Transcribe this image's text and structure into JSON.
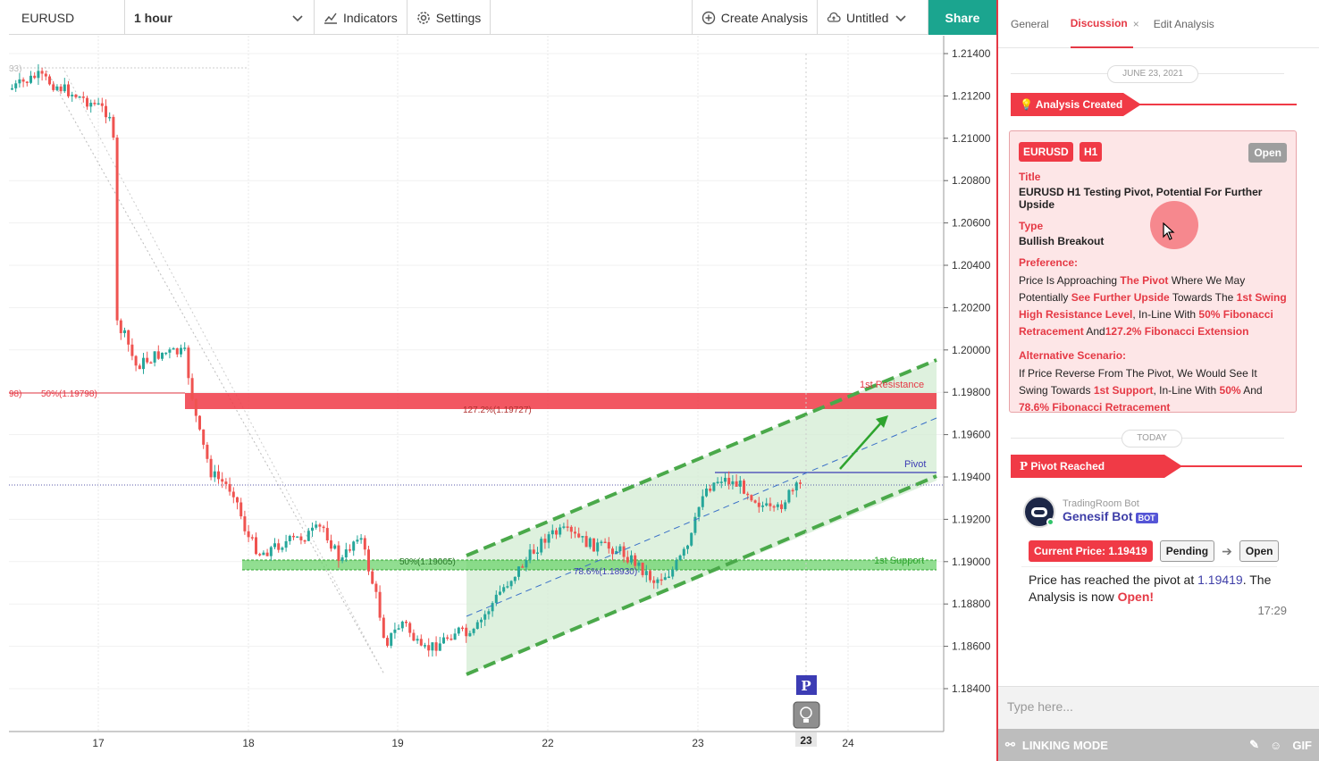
{
  "toolbar": {
    "symbol": "EURUSD",
    "interval": "1 hour",
    "indicators_label": "Indicators",
    "settings_label": "Settings",
    "create_analysis_label": "Create Analysis",
    "layout_label": "Untitled",
    "share_label": "Share"
  },
  "colors": {
    "accent_red": "#f03a46",
    "share_green": "#1ba58f",
    "bull_candle": "#26a69a",
    "bear_candle": "#ef5350",
    "channel_green": "#5cb85c",
    "link_blue": "#3f3fa8"
  },
  "chart": {
    "price_ticks": [
      "1.21400",
      "1.21200",
      "1.21000",
      "1.20800",
      "1.20600",
      "1.20400",
      "1.20200",
      "1.20000",
      "1.19800",
      "1.19600",
      "1.19400",
      "1.19200",
      "1.19000",
      "1.18800",
      "1.18600",
      "1.18400"
    ],
    "date_ticks": [
      "17",
      "18",
      "19",
      "22",
      "23",
      "24"
    ],
    "current_date_marker": "23",
    "labels": {
      "fib50_left": "50%(1.19798)",
      "left_edge": "98)",
      "left_edge_top": "33)",
      "resistance": "1st Resistance",
      "fib127": "127.2%(1.19727)",
      "pivot": "Pivot",
      "support": "1st Support",
      "fib50_low": "50%(1.19005)",
      "fib786": "78.6%(1.18930)",
      "pivot_marker": "P"
    }
  },
  "panel": {
    "tabs": [
      "General",
      "Discussion",
      "Edit Analysis"
    ],
    "active_tab": "Discussion",
    "date_label": "JUNE 23, 2021",
    "today_label": "TODAY",
    "analysis_created_label": "Analysis Created",
    "card": {
      "tags": [
        "EURUSD",
        "H1"
      ],
      "status": "Open",
      "title_label": "Title",
      "title": "EURUSD H1 Testing Pivot, Potential For Further Upside",
      "type_label": "Type",
      "type": "Bullish Breakout",
      "preference_label": "Preference:",
      "pref_1": "Price Is Approaching ",
      "pref_2": "The Pivot",
      "pref_3": " Where We May Potentially ",
      "pref_4": "See Further Upside",
      "pref_5": " Towards The ",
      "pref_6": "1st Swing High Resistance Level",
      "pref_7": ", In-Line With ",
      "pref_8": "50% Fibonacci Retracement",
      "pref_9": " And",
      "pref_10": "127.2% Fibonacci Extension",
      "alt_label": "Alternative Scenario:",
      "alt_1": "If Price Reverse From The Pivot, We Would See It Swing Towards ",
      "alt_2": "1st Support",
      "alt_3": ", In-Line With ",
      "alt_4": "50%",
      "alt_5": " And ",
      "alt_6": "78.6% Fibonacci Retracement"
    },
    "pivot_reached_label": "Pivot Reached",
    "bot": {
      "source": "TradingRoom Bot",
      "name": "Genesif Bot",
      "badge": "BOT"
    },
    "current_price_label": "Current Price: 1.19419",
    "pending_label": "Pending",
    "open_label": "Open",
    "message": {
      "m1": "Price has reached the pivot at ",
      "m2": "1.19419",
      "m3": ". The Analysis is now ",
      "m4": "Open!"
    },
    "message_time": "17:29",
    "input_placeholder": "Type here...",
    "linking_mode_label": "LINKING MODE",
    "gif_label": "GIF"
  }
}
